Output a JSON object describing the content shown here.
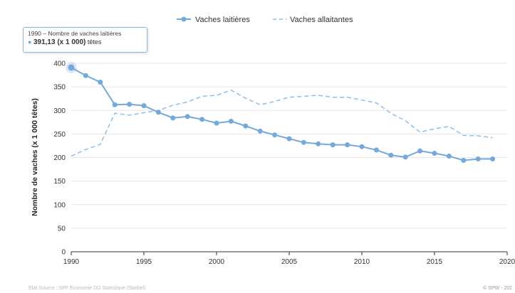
{
  "chart_data": {
    "type": "line",
    "ylabel": "Nombre de vaches (x 1 000 têtes)",
    "ylim": [
      0,
      400
    ],
    "yticks": [
      "0",
      "50",
      "100",
      "150",
      "200",
      "250",
      "300",
      "350",
      "400"
    ],
    "xlim": [
      1990,
      2020
    ],
    "xticks": [
      "1990",
      "1995",
      "2000",
      "2005",
      "2010",
      "2015",
      "2020"
    ],
    "grid": "horizontal",
    "legend_position": "top-center",
    "x": [
      1990,
      1991,
      1992,
      1993,
      1994,
      1995,
      1996,
      1997,
      1998,
      1999,
      2000,
      2001,
      2002,
      2003,
      2004,
      2005,
      2006,
      2007,
      2008,
      2009,
      2010,
      2011,
      2012,
      2013,
      2014,
      2015,
      2016,
      2017,
      2018,
      2019
    ],
    "series": [
      {
        "name": "Vaches laitières",
        "style": "solid-markers",
        "color": "#74a9dc",
        "values": [
          391,
          374,
          360,
          312,
          313,
          310,
          296,
          284,
          287,
          281,
          273,
          277,
          267,
          256,
          248,
          240,
          232,
          229,
          227,
          227,
          223,
          216,
          205,
          201,
          214,
          209,
          203,
          194,
          197,
          197
        ]
      },
      {
        "name": "Vaches allaitantes",
        "style": "dashed",
        "color": "#8fbde8",
        "values": [
          203,
          217,
          228,
          294,
          290,
          295,
          300,
          311,
          318,
          330,
          332,
          343,
          326,
          312,
          319,
          328,
          330,
          332,
          328,
          328,
          322,
          316,
          294,
          278,
          254,
          261,
          266,
          247,
          246,
          242
        ]
      }
    ]
  },
  "tooltip": {
    "title": "1990 – Nombre de vaches laitières",
    "bullet": "●",
    "value": "391,13 (x 1 000)",
    "unit": "têtes"
  },
  "footer": {
    "source": "Etat Source : SPF Économie DG Statistique (Statbel)",
    "credit": "© SPW - 202"
  }
}
